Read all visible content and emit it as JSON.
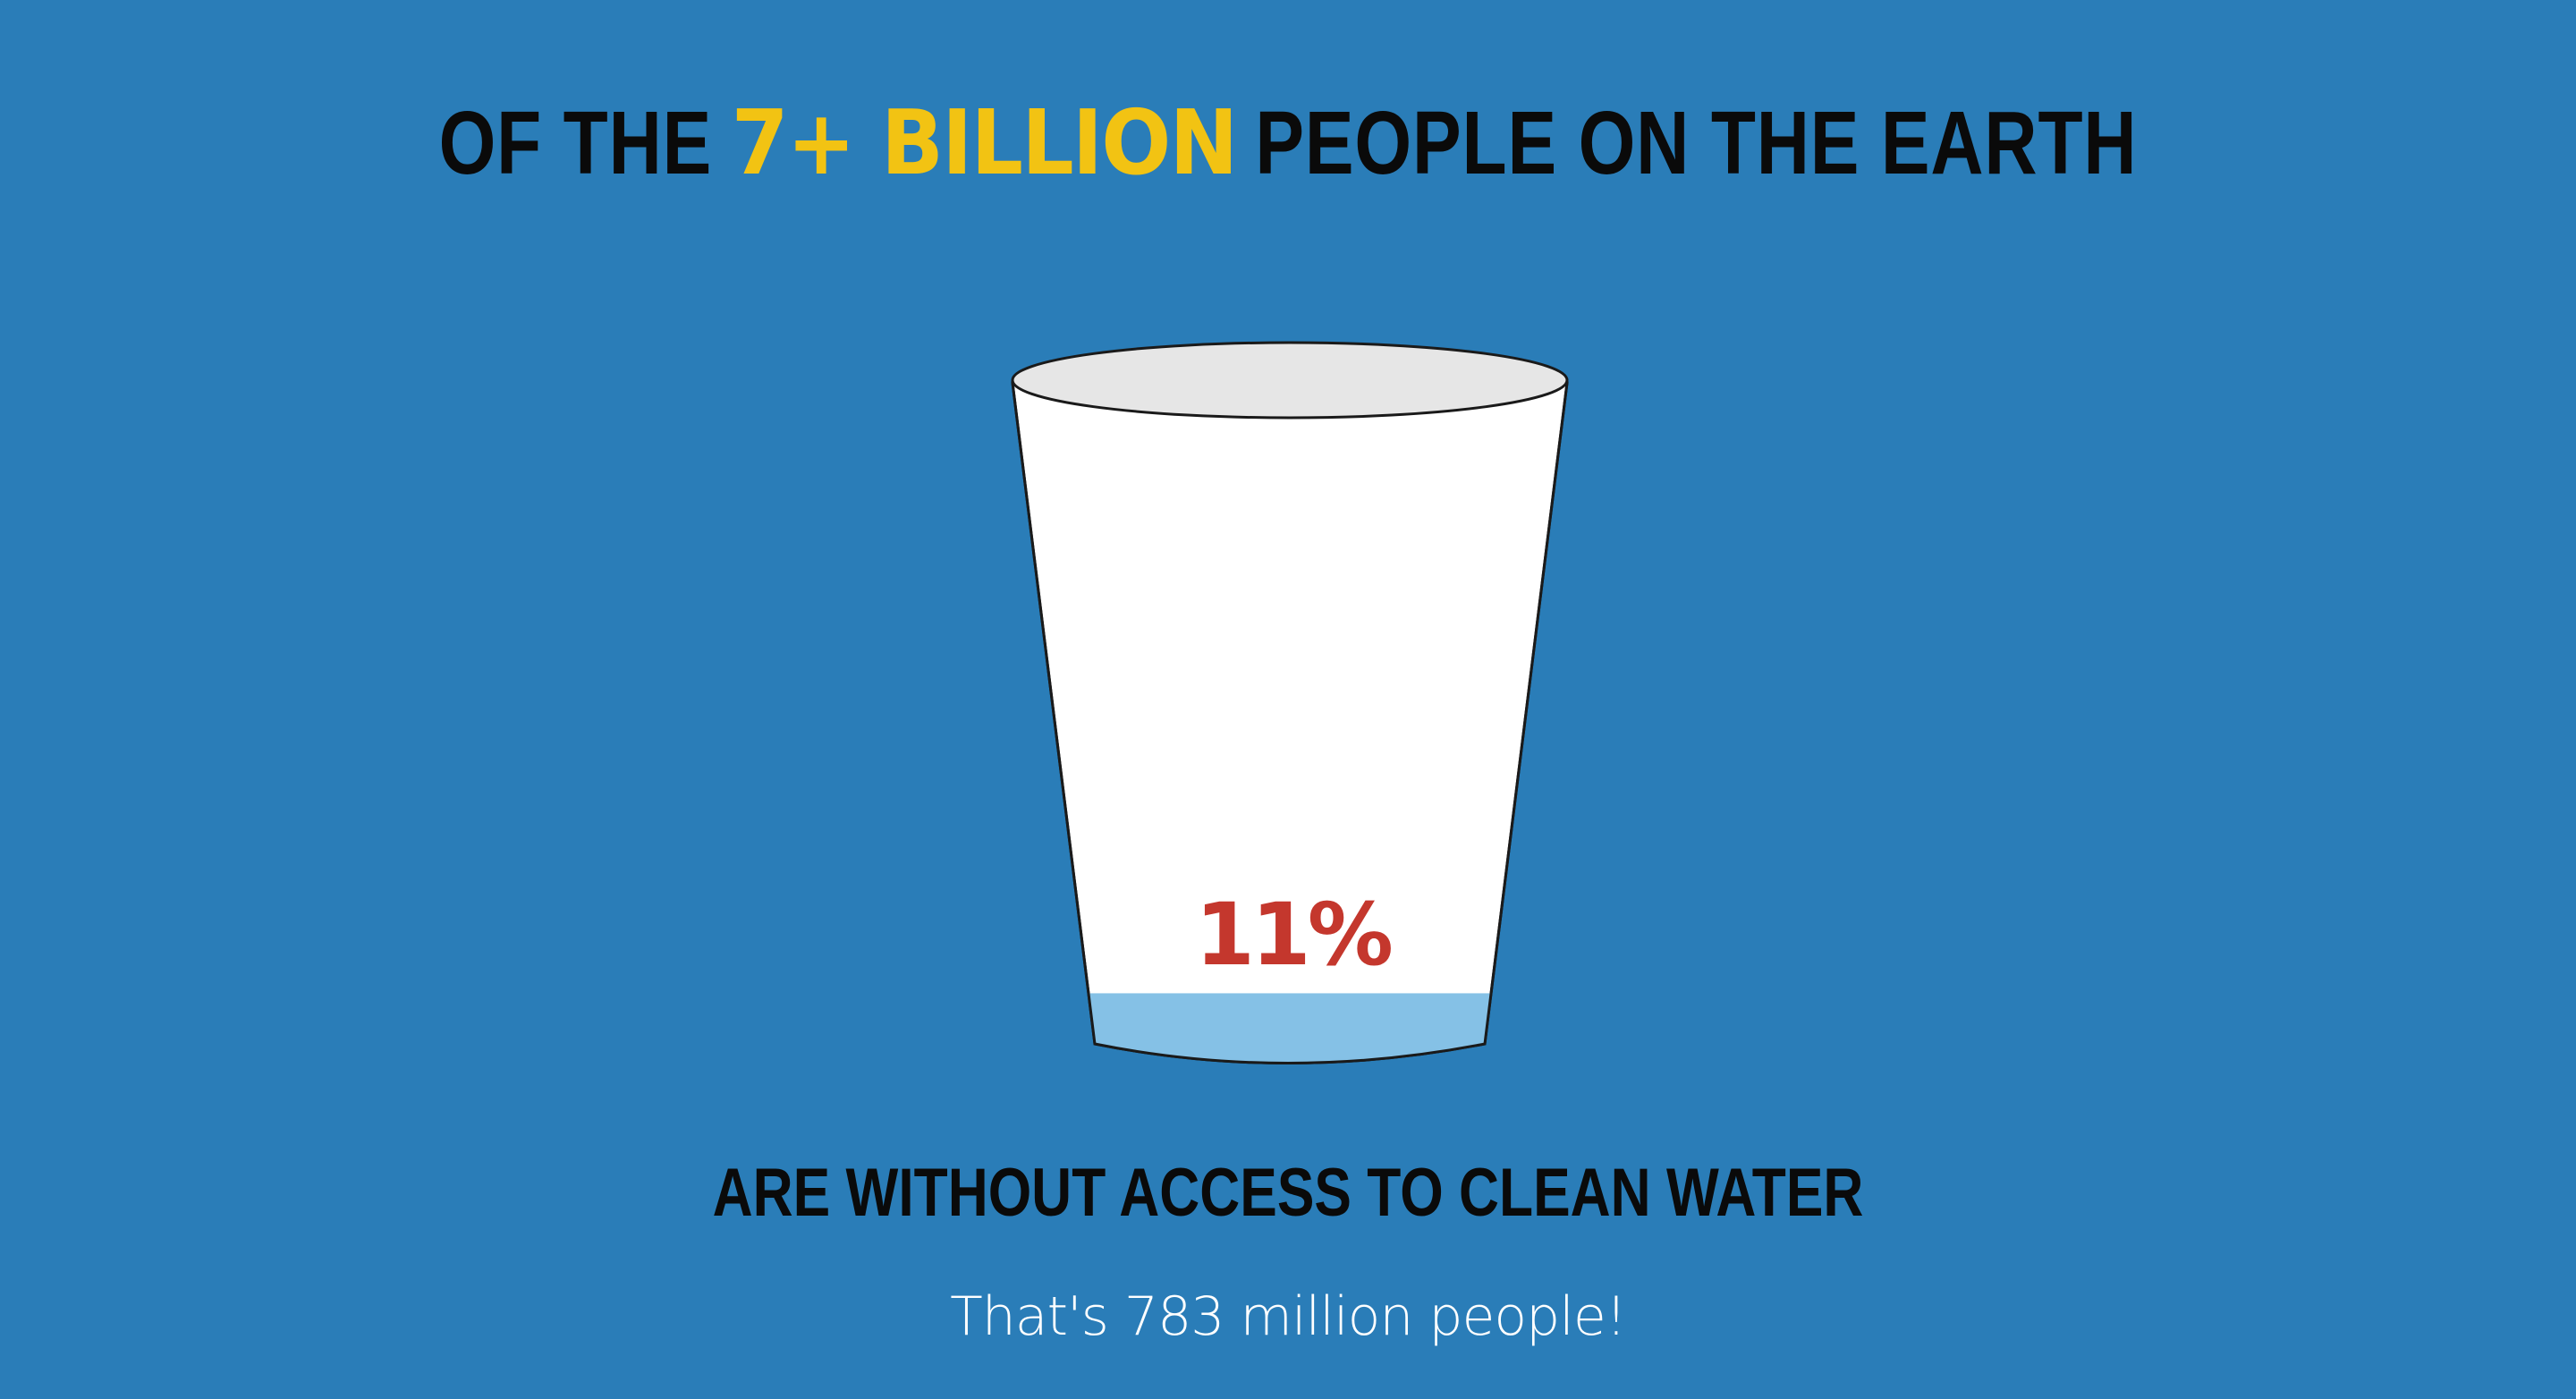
{
  "headline": {
    "part1": "OF THE",
    "highlight": "7+ BILLION",
    "part2": "PEOPLE ON THE EARTH"
  },
  "cup": {
    "fill_fraction": 0.11,
    "percent_label": "11%"
  },
  "subheadline": "ARE WITHOUT ACCESS TO CLEAN WATER",
  "note": "That's 783 million people!",
  "colors": {
    "background": "#2a7db8",
    "highlight": "#f2c313",
    "percent": "#c4372d",
    "water": "#85c1e6",
    "cup": "#ffffff",
    "cup_rim": "#e6e6e6",
    "text_dark": "#0a0a0a",
    "text_light": "#ffffff"
  }
}
